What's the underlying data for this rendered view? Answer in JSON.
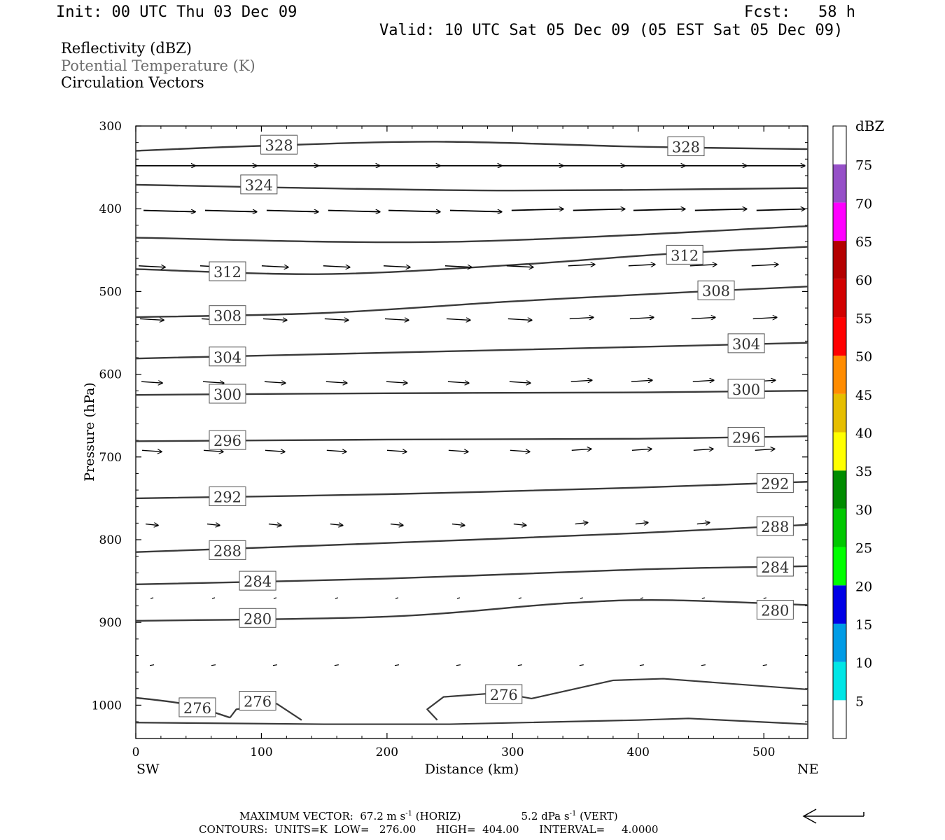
{
  "header": {
    "init": "Init: 00 UTC Thu 03 Dec 09",
    "fcst": "Fcst:   58 h",
    "valid": "Valid: 10 UTC Sat 05 Dec 09 (05 EST Sat 05 Dec 09)"
  },
  "legend_fields": {
    "reflectivity": "Reflectivity (dBZ)",
    "potential_temperature": "Potential Temperature (K)",
    "circulation": "Circulation Vectors"
  },
  "footer": {
    "max_vector_prefix": "MAXIMUM VECTOR:",
    "max_vector_horiz": "67.2 m s",
    "horiz_tag": "(HORIZ)",
    "max_vector_vert": "5.2 dPa s",
    "vert_tag": "(VERT)",
    "exp": "-1",
    "contours": "CONTOURS:  UNITS=K  LOW=   276.00      HIGH=  404.00      INTERVAL=     4.0000"
  },
  "colorbar": {
    "title": "dBZ",
    "ticks": [
      "5",
      "10",
      "15",
      "20",
      "25",
      "30",
      "35",
      "40",
      "45",
      "50",
      "55",
      "60",
      "65",
      "70",
      "75"
    ],
    "colors": [
      "#ffffff",
      "#00e6e6",
      "#009ce6",
      "#0000e6",
      "#00ff00",
      "#00c800",
      "#008c00",
      "#ffff00",
      "#e6be00",
      "#ff8c00",
      "#ff0000",
      "#d20000",
      "#b40000",
      "#ff00ff",
      "#9650c8",
      "#ffffff"
    ]
  },
  "chart_data": {
    "type": "cross-section contour",
    "xlabel": "Distance (km)",
    "ylabel": "Pressure (hPa)",
    "xlim": [
      0,
      535
    ],
    "ylim": [
      300,
      1040
    ],
    "x_ticks": [
      "0",
      "100",
      "200",
      "300",
      "400",
      "500"
    ],
    "y_ticks": [
      "300",
      "400",
      "500",
      "600",
      "700",
      "800",
      "900",
      "1000"
    ],
    "x_left_label": "SW",
    "x_right_label": "NE",
    "contours": [
      {
        "level": "328",
        "x": [
          0,
          100,
          240,
          400,
          535
        ],
        "p": [
          330,
          324,
          319,
          325,
          328
        ],
        "labels": [
          [
            114,
            323
          ],
          [
            438,
            325
          ]
        ]
      },
      {
        "level": "324",
        "x": [
          0,
          100,
          300,
          535
        ],
        "p": [
          371,
          374,
          378,
          375
        ],
        "labels": [
          [
            98,
            371
          ]
        ]
      },
      {
        "level": "320",
        "x": [
          0,
          250,
          535
        ],
        "p": [
          435,
          440,
          421
        ],
        "labels": []
      },
      {
        "level": "312",
        "x": [
          0,
          150,
          300,
          420,
          535
        ],
        "p": [
          473,
          479,
          468,
          455,
          446
        ],
        "labels": [
          [
            73,
            476
          ],
          [
            437,
            456
          ]
        ]
      },
      {
        "level": "308",
        "x": [
          0,
          150,
          300,
          450,
          535
        ],
        "p": [
          531,
          526,
          512,
          500,
          494
        ],
        "labels": [
          [
            73,
            529
          ],
          [
            462,
            499
          ]
        ]
      },
      {
        "level": "304",
        "x": [
          0,
          200,
          400,
          535
        ],
        "p": [
          581,
          574,
          567,
          562
        ],
        "labels": [
          [
            73,
            579
          ],
          [
            486,
            563
          ]
        ]
      },
      {
        "level": "300",
        "x": [
          0,
          200,
          400,
          535
        ],
        "p": [
          625,
          623,
          622,
          620
        ],
        "labels": [
          [
            73,
            624
          ],
          [
            486,
            618
          ]
        ]
      },
      {
        "level": "296",
        "x": [
          0,
          200,
          400,
          535
        ],
        "p": [
          681,
          679,
          678,
          675
        ],
        "labels": [
          [
            73,
            680
          ],
          [
            486,
            676
          ]
        ]
      },
      {
        "level": "292",
        "x": [
          0,
          200,
          400,
          535
        ],
        "p": [
          750,
          745,
          737,
          730
        ],
        "labels": [
          [
            73,
            748
          ],
          [
            509,
            732
          ]
        ]
      },
      {
        "level": "288",
        "x": [
          0,
          200,
          400,
          535
        ],
        "p": [
          815,
          804,
          792,
          782
        ],
        "labels": [
          [
            73,
            813
          ],
          [
            509,
            784
          ]
        ]
      },
      {
        "level": "284",
        "x": [
          0,
          200,
          400,
          535
        ],
        "p": [
          854,
          847,
          836,
          832
        ],
        "labels": [
          [
            97,
            850
          ],
          [
            509,
            833
          ]
        ]
      },
      {
        "level": "280",
        "x": [
          0,
          200,
          340,
          420,
          535
        ],
        "p": [
          898,
          893,
          877,
          873,
          879
        ],
        "labels": [
          [
            97,
            895
          ],
          [
            509,
            885
          ]
        ]
      },
      {
        "level": "276",
        "x": [
          0,
          40,
          75
        ],
        "p": [
          991,
          999,
          1015
        ],
        "labels": [
          [
            49,
            1003
          ],
          [
            97,
            995
          ],
          [
            293,
            987
          ]
        ]
      }
    ],
    "vector_rows_hPa": [
      348,
      402,
      469,
      533,
      609,
      692,
      781,
      871,
      952
    ],
    "vector_columns_km": [
      24,
      73,
      122,
      171,
      219,
      268,
      317,
      366,
      414,
      463,
      512
    ],
    "max_vector_horiz_ms": 67.2,
    "max_vector_vert_dPa_s": 5.2,
    "contour_low": 276.0,
    "contour_high": 404.0,
    "contour_interval": 4.0
  }
}
